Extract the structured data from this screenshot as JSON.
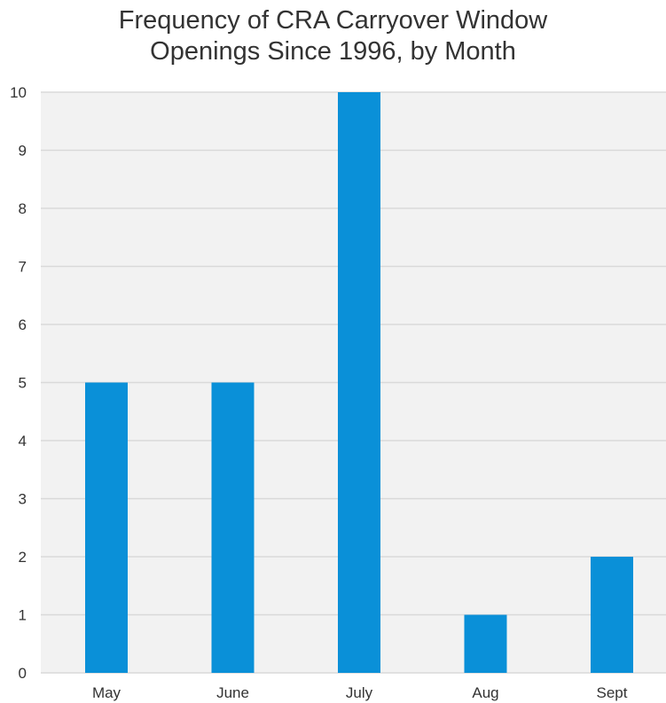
{
  "chart_data": {
    "type": "bar",
    "title_lines": [
      "Frequency of CRA Carryover Window",
      "Openings Since 1996, by Month"
    ],
    "categories": [
      "May",
      "June",
      "July",
      "Aug",
      "Sept"
    ],
    "values": [
      5,
      5,
      10,
      1,
      2
    ],
    "xlabel": "",
    "ylabel": "",
    "ylim": [
      0,
      10
    ],
    "yticks": [
      "0",
      "1",
      "2",
      "3",
      "4",
      "5",
      "6",
      "7",
      "8",
      "9",
      "10"
    ],
    "grid": true,
    "legend": "none",
    "colors": {
      "bar": "#0a90d8",
      "plot_background": "#f2f2f2",
      "gridline": "#d9d9d9",
      "text": "#333333"
    }
  }
}
